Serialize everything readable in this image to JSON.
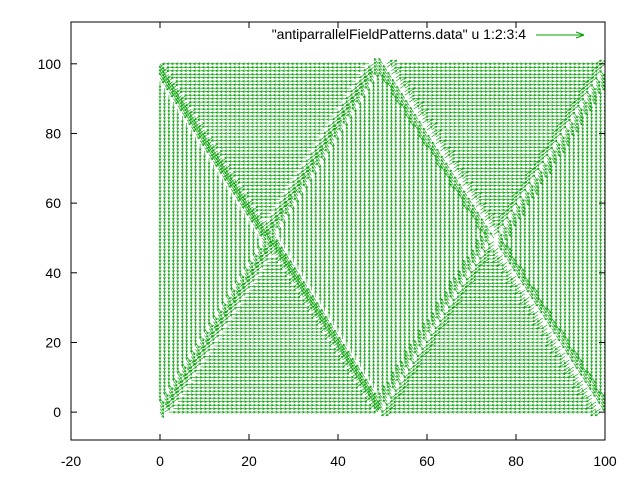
{
  "chart_data": {
    "type": "vector-field",
    "title": "",
    "xlabel": "",
    "ylabel": "",
    "xlim": [
      -20,
      100
    ],
    "ylim": [
      -8,
      112
    ],
    "x_ticks": [
      -20,
      0,
      20,
      40,
      60,
      80,
      100
    ],
    "y_ticks": [
      0,
      20,
      40,
      60,
      80,
      100
    ],
    "grid": false,
    "legend_position": "top-right",
    "series": [
      {
        "name": "\"antiparrallelFieldPatterns.data\" u 1:2:3:4",
        "color": "#00a000",
        "style": "vectors",
        "grid_x_range": [
          0,
          100
        ],
        "grid_y_range": [
          0,
          100
        ],
        "grid_step": 1,
        "domains": [
          {
            "x_range": [
              0,
              49
            ],
            "y_range": [
              0,
              100
            ],
            "circulation": "counterclockwise"
          },
          {
            "x_range": [
              50,
              100
            ],
            "y_range": [
              0,
              100
            ],
            "circulation": "clockwise"
          }
        ]
      }
    ]
  }
}
